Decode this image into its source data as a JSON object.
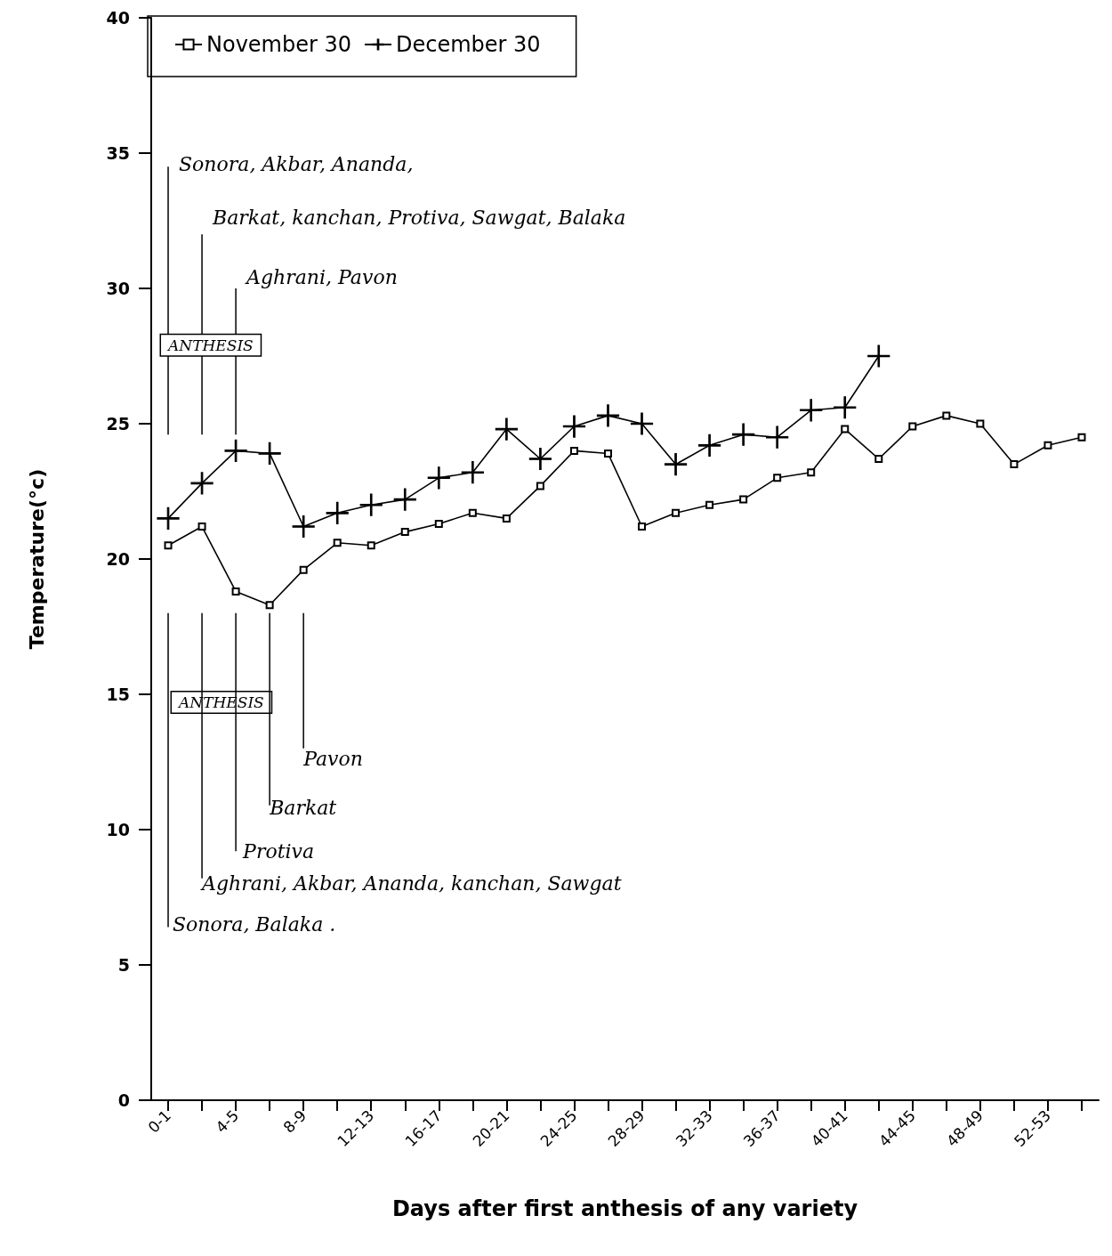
{
  "chart_data": {
    "type": "line",
    "xlabel": "Days after first anthesis of any variety",
    "ylabel": "Temperature(°c)",
    "categories": [
      "0-1",
      null,
      "4-5",
      null,
      "8-9",
      null,
      "12-13",
      null,
      "16-17",
      null,
      "20-21",
      null,
      "24-25",
      null,
      "28-29",
      null,
      "32-33",
      null,
      "36-37",
      null,
      "40-41",
      null,
      "44-45",
      null,
      "48-49",
      null,
      "52-53",
      null
    ],
    "series": [
      {
        "name": "November 30",
        "color": "#000000",
        "marker": "square",
        "values": [
          20.5,
          21.2,
          18.8,
          18.3,
          19.6,
          20.6,
          20.5,
          21.0,
          21.3,
          21.7,
          21.5,
          22.7,
          24.0,
          23.9,
          21.2,
          21.7,
          22.0,
          22.2,
          23.0,
          23.2,
          24.8,
          23.7,
          24.9,
          25.3,
          25.0,
          23.5,
          24.2,
          24.5
        ]
      },
      {
        "name": "December 30",
        "color": "#000000",
        "marker": "cross",
        "values": [
          21.5,
          22.8,
          24.0,
          23.9,
          21.2,
          21.7,
          22.0,
          22.2,
          23.0,
          23.2,
          24.8,
          23.7,
          24.9,
          25.3,
          25.0,
          23.5,
          24.2,
          24.6,
          24.5,
          25.5,
          25.6,
          27.5,
          null,
          null,
          null,
          null,
          null,
          null
        ]
      }
    ],
    "ylim": [
      0,
      40
    ],
    "yticks": [
      0,
      5,
      10,
      15,
      20,
      25,
      30,
      35,
      40
    ],
    "grid": false,
    "legend": "top left",
    "line_style": "solid",
    "annotations": [
      "Sonora, Akbar, Ananda,",
      "Barkat, kanchan, Protiva, Sawgat, Balaka",
      "Aghrani, Pavon",
      "ANTHESIS",
      "ANTHESIS",
      "Pavon",
      "Barkat",
      "Protiva",
      "Aghrani, Akbar, Ananda, kanchan, Sawgat",
      "Sonora, Balaka ."
    ]
  }
}
